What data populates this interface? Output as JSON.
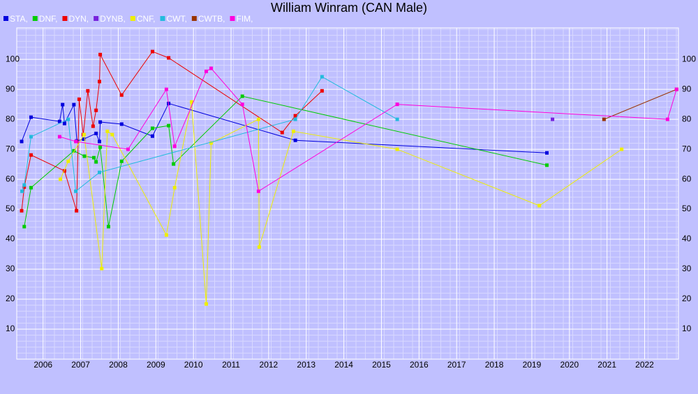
{
  "chart_data": {
    "type": "line",
    "title": "William Winram (CAN Male)",
    "xlim": [
      2005.3,
      2022.9
    ],
    "ylim": [
      0,
      110.5
    ],
    "xticks": [
      2006,
      2007,
      2008,
      2009,
      2010,
      2011,
      2012,
      2013,
      2014,
      2015,
      2016,
      2017,
      2018,
      2019,
      2020,
      2021,
      2022
    ],
    "yticks": [
      10,
      20,
      30,
      40,
      50,
      60,
      70,
      80,
      90,
      100
    ],
    "grid": true,
    "series": [
      {
        "name": "STA,",
        "color": "#0000dd",
        "x": [
          2005.43,
          2005.68,
          2006.44,
          2006.52,
          2006.57,
          2006.82,
          2006.9,
          2007.08,
          2007.41,
          2007.5,
          2007.52,
          2008.09,
          2008.91,
          2009.34,
          2012.71,
          2019.4
        ],
        "values": [
          72.6,
          80.7,
          79.3,
          84.9,
          78.6,
          84.9,
          72.8,
          73.4,
          75.3,
          72.6,
          79.1,
          78.4,
          74.4,
          85.3,
          73.0,
          68.8
        ]
      },
      {
        "name": "DNF,",
        "color": "#00cc00",
        "x": [
          2005.5,
          2005.68,
          2006.82,
          2007.1,
          2007.35,
          2007.41,
          2007.52,
          2007.74,
          2008.09,
          2008.91,
          2009.34,
          2009.47,
          2011.3,
          2019.4
        ],
        "values": [
          44.2,
          57.2,
          69.5,
          67.7,
          67.2,
          65.8,
          70.7,
          44.2,
          66.0,
          77.0,
          77.9,
          65.1,
          87.7,
          64.7
        ]
      },
      {
        "name": "DYN,",
        "color": "#ee0000",
        "x": [
          2005.43,
          2005.5,
          2005.68,
          2006.57,
          2006.89,
          2006.96,
          2007.07,
          2007.19,
          2007.33,
          2007.41,
          2007.5,
          2007.52,
          2008.09,
          2008.91,
          2009.34,
          2012.36,
          2012.71,
          2013.42
        ],
        "values": [
          49.5,
          57.4,
          68.1,
          62.8,
          49.5,
          86.7,
          74.9,
          89.5,
          77.7,
          83.0,
          92.6,
          101.6,
          88.1,
          102.6,
          100.5,
          75.6,
          81.2,
          89.5
        ]
      },
      {
        "name": "DYNB,",
        "color": "#7722dd",
        "x": [
          2019.55
        ],
        "values": [
          80
        ]
      },
      {
        "name": "CNF,",
        "color": "#eeee00",
        "x": [
          2006.46,
          2006.67,
          2007.09,
          2007.56,
          2007.71,
          2007.84,
          2009.28,
          2009.5,
          2009.95,
          2010.34,
          2010.47,
          2011.73,
          2011.75,
          2012.66,
          2015.42,
          2019.2,
          2021.39
        ],
        "values": [
          60.0,
          66.0,
          74.9,
          30.2,
          76.0,
          74.9,
          41.4,
          57.2,
          85.8,
          18.4,
          72.1,
          80.0,
          37.4,
          76.0,
          70.0,
          51.2,
          70.0
        ]
      },
      {
        "name": "CWT,",
        "color": "#22bbdd",
        "x": [
          2005.44,
          2005.5,
          2005.68,
          2006.67,
          2006.87,
          2007.5,
          2012.71,
          2013.42,
          2015.42
        ],
        "values": [
          56.0,
          58.1,
          74.2,
          80.0,
          56.0,
          62.3,
          80.0,
          94.2,
          80.0
        ]
      },
      {
        "name": "CWTB,",
        "color": "#993300",
        "x": [
          2020.92,
          2022.85
        ],
        "values": [
          80,
          90
        ]
      },
      {
        "name": "FIM,",
        "color": "#ff00dd",
        "x": [
          2006.44,
          2006.87,
          2008.26,
          2009.28,
          2009.5,
          2010.34,
          2010.47,
          2011.3,
          2011.73,
          2015.42,
          2022.61,
          2022.85
        ],
        "values": [
          74.2,
          72.6,
          70.0,
          90.0,
          71.0,
          96.0,
          97.0,
          85.0,
          56.0,
          85.0,
          80.0,
          90.0
        ]
      }
    ]
  }
}
